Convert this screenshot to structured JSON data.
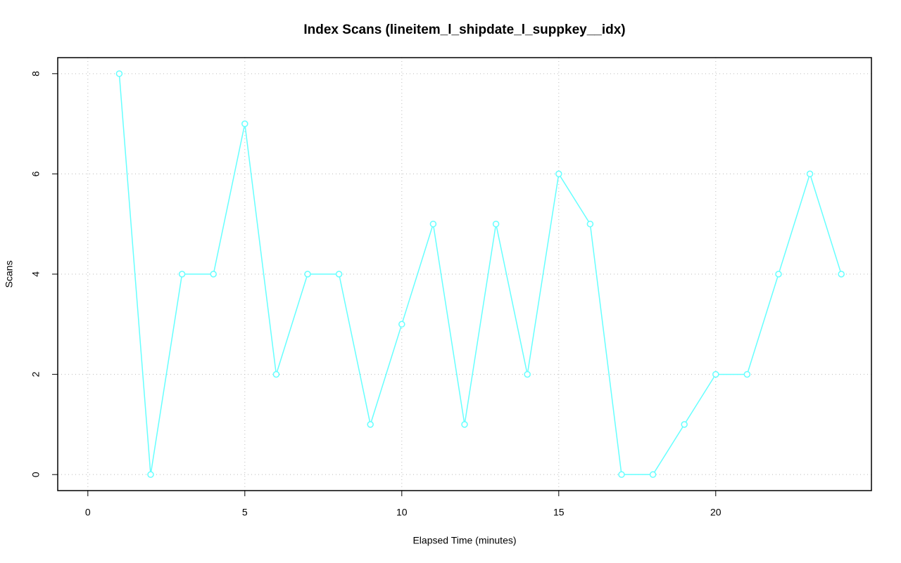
{
  "chart_data": {
    "type": "line",
    "title": "Index Scans (lineitem_l_shipdate_l_suppkey__idx)",
    "x_label": "Elapsed Time (minutes)",
    "y_label": "Scans",
    "x": [
      1,
      2,
      3,
      4,
      5,
      6,
      7,
      8,
      9,
      10,
      11,
      12,
      13,
      14,
      15,
      16,
      17,
      18,
      19,
      20,
      21,
      22,
      23,
      24
    ],
    "series": [
      {
        "name": "Scans",
        "color": "#66ffff",
        "values": [
          8,
          0,
          4,
          4,
          7,
          2,
          4,
          4,
          1,
          3,
          5,
          1,
          5,
          2,
          6,
          5,
          0,
          0,
          1,
          2,
          2,
          4,
          6,
          4
        ]
      }
    ],
    "xlim": [
      -0.96,
      24.96
    ],
    "xticks": [
      0,
      5,
      10,
      15,
      20
    ],
    "ylim": [
      -0.32,
      8.32
    ],
    "yticks": [
      0,
      2,
      4,
      6,
      8
    ],
    "grid": true
  }
}
